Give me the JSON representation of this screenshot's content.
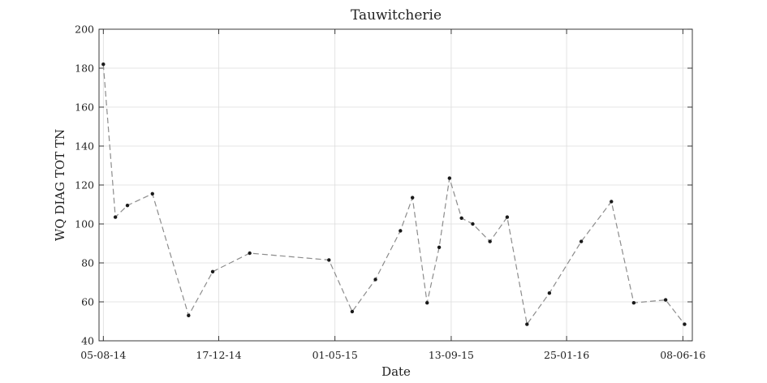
{
  "chart_data": {
    "type": "line",
    "title": "Tauwitcherie",
    "xlabel": "Date",
    "ylabel": "WQ DIAG TOT TN",
    "x_type": "date",
    "xlim": [
      "2014-07-31",
      "2016-06-19"
    ],
    "ylim": [
      40,
      200
    ],
    "grid": true,
    "x_ticks": [
      "2014-08-05",
      "2014-12-17",
      "2015-05-01",
      "2015-09-13",
      "2016-01-25",
      "2016-06-08"
    ],
    "x_tick_labels": [
      "05-08-14",
      "17-12-14",
      "01-05-15",
      "13-09-15",
      "25-01-16",
      "08-06-16"
    ],
    "y_ticks": [
      40,
      60,
      80,
      100,
      120,
      140,
      160,
      180,
      200
    ],
    "y_tick_labels": [
      "40",
      "60",
      "80",
      "100",
      "120",
      "140",
      "160",
      "180",
      "200"
    ],
    "series": [
      {
        "line_style": "dashed",
        "line_color": "#8c8c8c",
        "marker_color": "#1a1a1a",
        "points": [
          {
            "x": "2014-08-05",
            "y": 182
          },
          {
            "x": "2014-08-19",
            "y": 103.5
          },
          {
            "x": "2014-09-02",
            "y": 109.5
          },
          {
            "x": "2014-10-01",
            "y": 115.5
          },
          {
            "x": "2014-11-12",
            "y": 53
          },
          {
            "x": "2014-12-10",
            "y": 75.5
          },
          {
            "x": "2015-01-22",
            "y": 85
          },
          {
            "x": "2015-04-24",
            "y": 81.5
          },
          {
            "x": "2015-05-21",
            "y": 55
          },
          {
            "x": "2015-06-17",
            "y": 71.5
          },
          {
            "x": "2015-07-16",
            "y": 96.5
          },
          {
            "x": "2015-07-30",
            "y": 113.5
          },
          {
            "x": "2015-08-16",
            "y": 59.5
          },
          {
            "x": "2015-08-30",
            "y": 88
          },
          {
            "x": "2015-09-11",
            "y": 123.5
          },
          {
            "x": "2015-09-25",
            "y": 103
          },
          {
            "x": "2015-10-08",
            "y": 100
          },
          {
            "x": "2015-10-28",
            "y": 91
          },
          {
            "x": "2015-11-17",
            "y": 103.5
          },
          {
            "x": "2015-12-10",
            "y": 48.5
          },
          {
            "x": "2016-01-05",
            "y": 64.5
          },
          {
            "x": "2016-02-11",
            "y": 91
          },
          {
            "x": "2016-03-17",
            "y": 111.5
          },
          {
            "x": "2016-04-12",
            "y": 59.5
          },
          {
            "x": "2016-05-19",
            "y": 61
          },
          {
            "x": "2016-06-10",
            "y": 48.5
          }
        ]
      }
    ]
  }
}
